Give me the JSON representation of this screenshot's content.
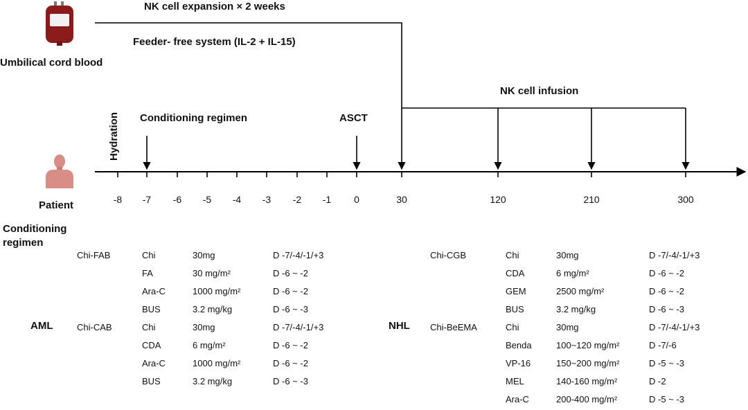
{
  "top": {
    "source_label": "Umbilical cord blood",
    "expansion_label": "NK cell expansion × 2 weeks",
    "system_label": "Feeder- free system (IL-2 + IL-15)",
    "infusion_label": "NK cell infusion"
  },
  "timeline": {
    "hydration_label": "Hydration",
    "conditioning_label": "Conditioning regimen",
    "asct_label": "ASCT",
    "patient_label": "Patient",
    "ticks": [
      "-8",
      "-7",
      "-6",
      "-5",
      "-4",
      "-3",
      "-2",
      "-1",
      "0",
      "30",
      "120",
      "210",
      "300"
    ]
  },
  "regimen_title": "Conditioning regimen",
  "aml": {
    "label": "AML",
    "groups": [
      {
        "name": "Chi-FAB",
        "rows": [
          [
            "Chi",
            "30mg",
            "D -7/-4/-1/+3"
          ],
          [
            "FA",
            "30 mg/m²",
            "D -6 ~ -2"
          ],
          [
            "Ara-C",
            "1000 mg/m²",
            "D -6 ~ -2"
          ],
          [
            "BUS",
            "3.2 mg/kg",
            "D -6 ~ -3"
          ]
        ]
      },
      {
        "name": "Chi-CAB",
        "rows": [
          [
            "Chi",
            "30mg",
            "D -7/-4/-1/+3"
          ],
          [
            "CDA",
            "6 mg/m²",
            "D -6 ~ -2"
          ],
          [
            "Ara-C",
            "1000 mg/m²",
            "D -6 ~ -2"
          ],
          [
            "BUS",
            "3.2 mg/kg",
            "D -6 ~ -3"
          ]
        ]
      }
    ]
  },
  "nhl": {
    "label": "NHL",
    "groups": [
      {
        "name": "Chi-CGB",
        "rows": [
          [
            "Chi",
            "30mg",
            "D -7/-4/-1/+3"
          ],
          [
            "CDA",
            "6 mg/m²",
            "D -6 ~ -2"
          ],
          [
            "GEM",
            "2500 mg/m²",
            "D -6 ~ -2"
          ],
          [
            "BUS",
            "3.2 mg/kg",
            "D -6 ~ -3"
          ]
        ]
      },
      {
        "name": "Chi-BeEMA",
        "rows": [
          [
            "Chi",
            "30mg",
            "D -7/-4/-1/+3"
          ],
          [
            "Benda",
            "100~120 mg/m²",
            "D -7/-6"
          ],
          [
            "VP-16",
            "150~200 mg/m²",
            "D -5 ~ -3"
          ],
          [
            "MEL",
            "140-160 mg/m²",
            "D -2"
          ],
          [
            "Ara-C",
            "200-400 mg/m²",
            "D -5 ~ -3"
          ]
        ]
      }
    ]
  },
  "colors": {
    "blood_bag": "#8b1a1a",
    "person": "#d88d86",
    "line": "#000000"
  },
  "icons": {
    "source": "blood-bag-icon",
    "patient": "person-icon"
  }
}
